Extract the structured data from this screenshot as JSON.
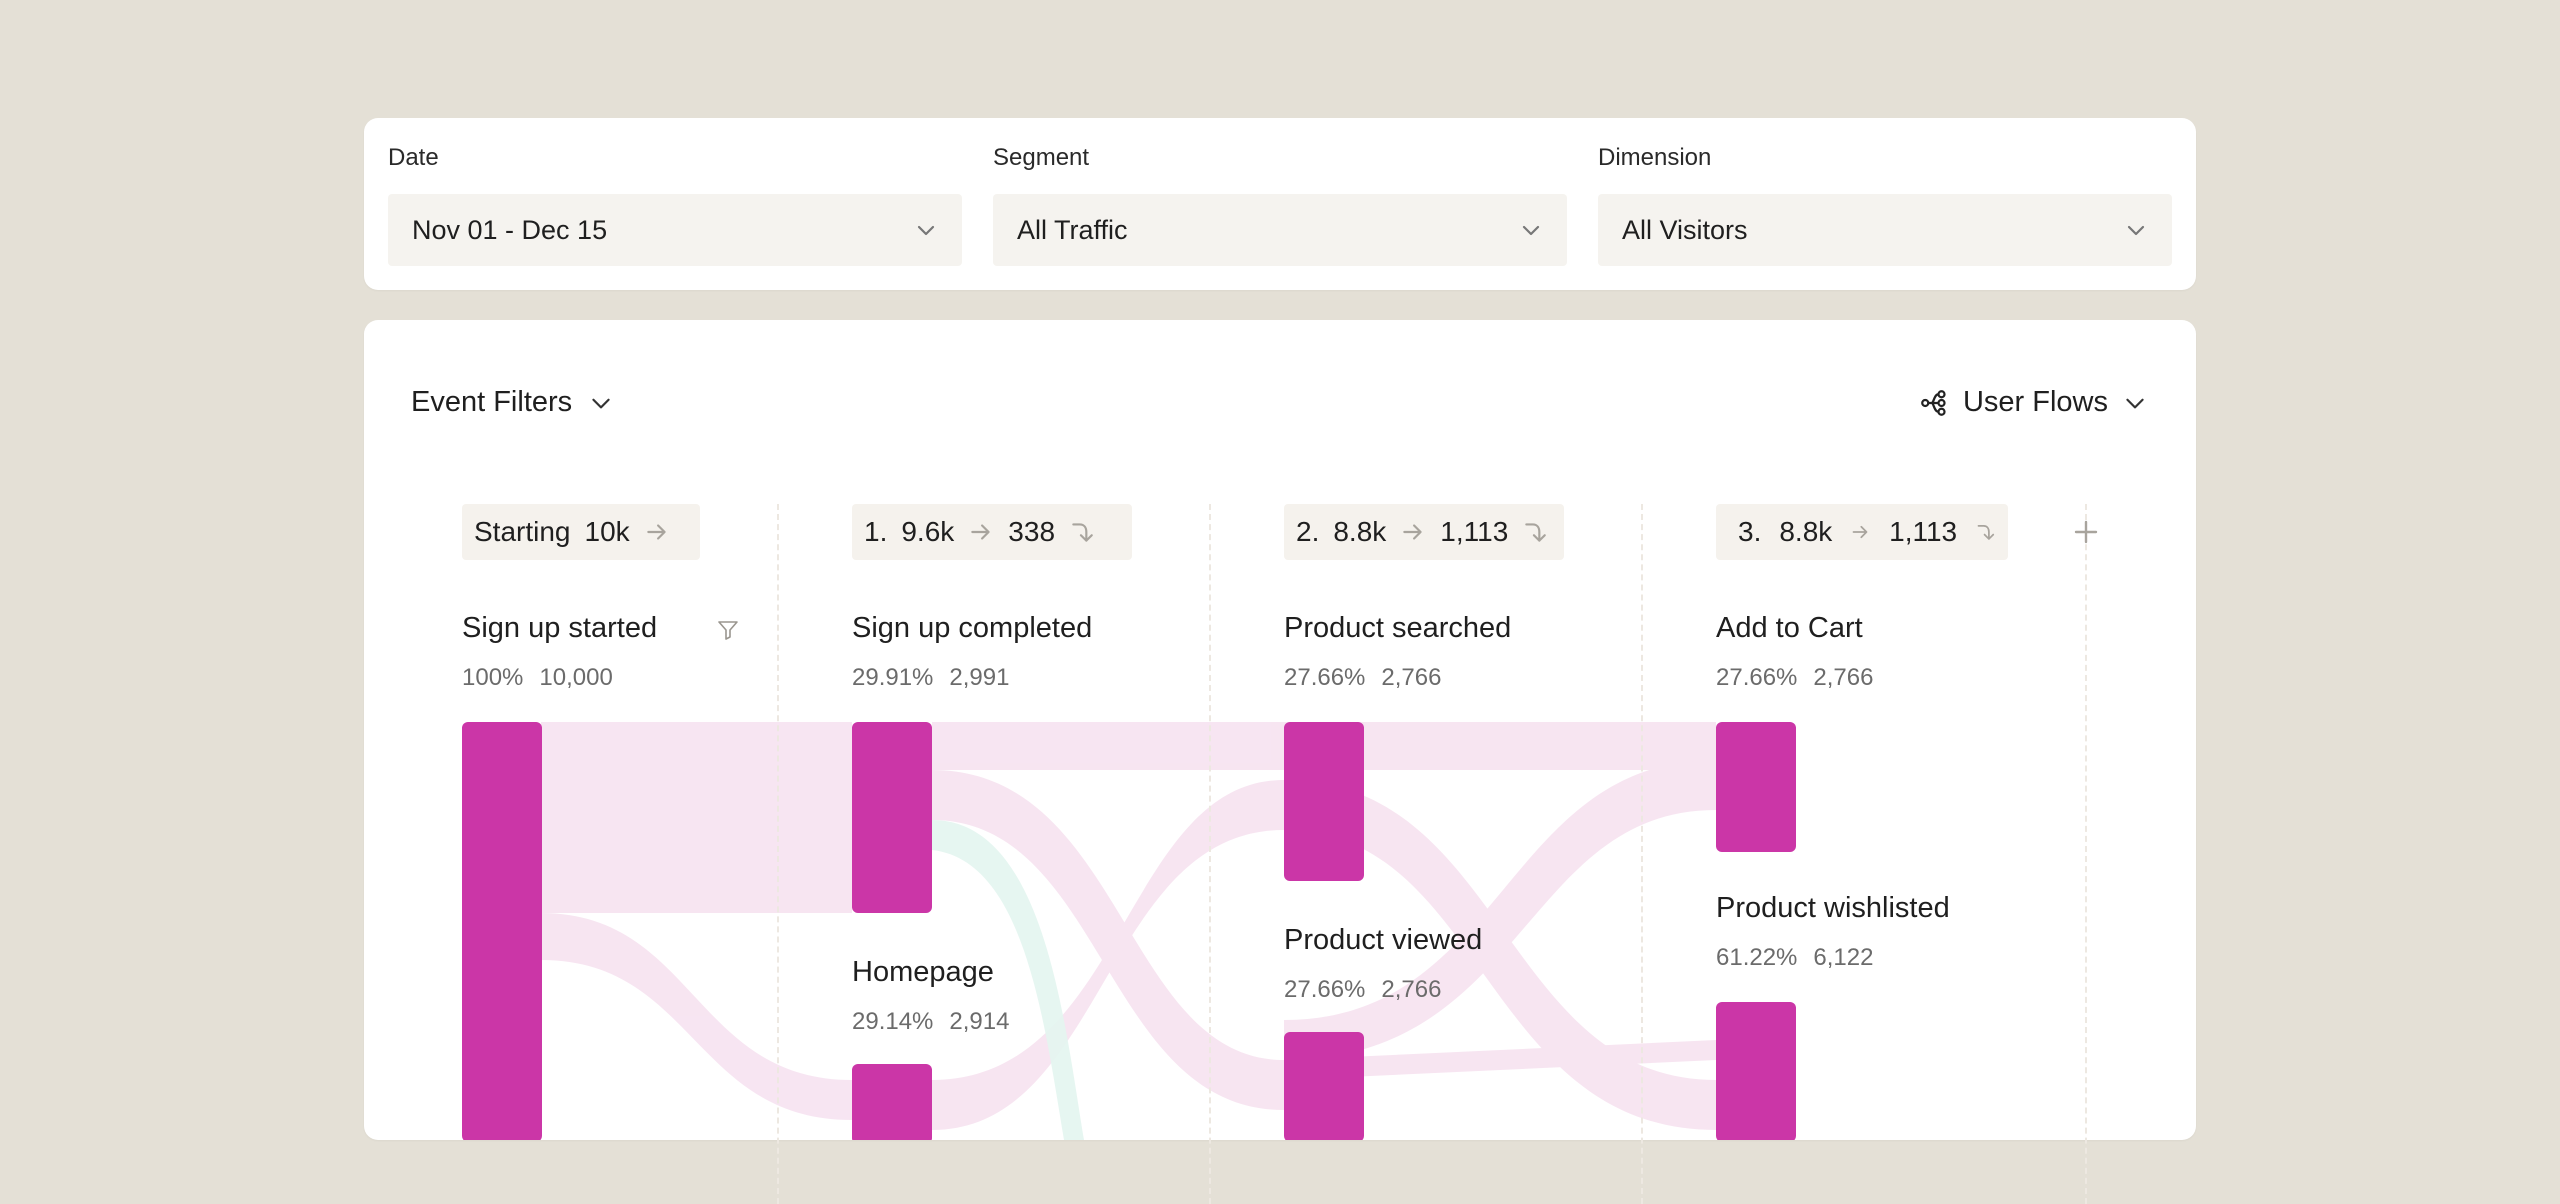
{
  "filters": {
    "date": {
      "label": "Date",
      "value": "Nov 01 - Dec 15"
    },
    "segment": {
      "label": "Segment",
      "value": "All Traffic"
    },
    "dimension": {
      "label": "Dimension",
      "value": "All Visitors"
    }
  },
  "toolbar": {
    "event_filters_label": "Event Filters",
    "user_flows_label": "User Flows"
  },
  "steps": [
    {
      "index": "Starting",
      "count": "10k"
    },
    {
      "index": "1.",
      "count": "9.6k",
      "dropoff": "338"
    },
    {
      "index": "2.",
      "count": "8.8k",
      "dropoff": "1,113"
    },
    {
      "index": "3.",
      "count": "8.8k",
      "dropoff": "1,113"
    }
  ],
  "nodes": {
    "sign_up_started": {
      "title": "Sign up started",
      "pct": "100%",
      "count": "10,000"
    },
    "sign_up_completed": {
      "title": "Sign up completed",
      "pct": "29.91%",
      "count": "2,991"
    },
    "homepage": {
      "title": "Homepage",
      "pct": "29.14%",
      "count": "2,914"
    },
    "product_searched": {
      "title": "Product searched",
      "pct": "27.66%",
      "count": "2,766"
    },
    "product_viewed": {
      "title": "Product viewed",
      "pct": "27.66%",
      "count": "2,766"
    },
    "add_to_cart": {
      "title": "Add to Cart",
      "pct": "27.66%",
      "count": "2,766"
    },
    "product_wishlisted": {
      "title": "Product wishlisted",
      "pct": "61.22%",
      "count": "6,122"
    }
  },
  "colors": {
    "background": "#e4e0d6",
    "node": "#cb36a7",
    "flow": "#f7e4f1",
    "flow_alt": "#e3f5ef",
    "pill": "#f5f2ed",
    "select": "#f5f3ef"
  },
  "icons": {
    "select_chevron": "chevron-down-icon",
    "step_arrow": "arrow-right-icon",
    "dropoff": "dropoff-arrow-icon",
    "user_flows": "flow-graph-icon",
    "filter": "filter-funnel-icon",
    "add": "plus-icon"
  }
}
